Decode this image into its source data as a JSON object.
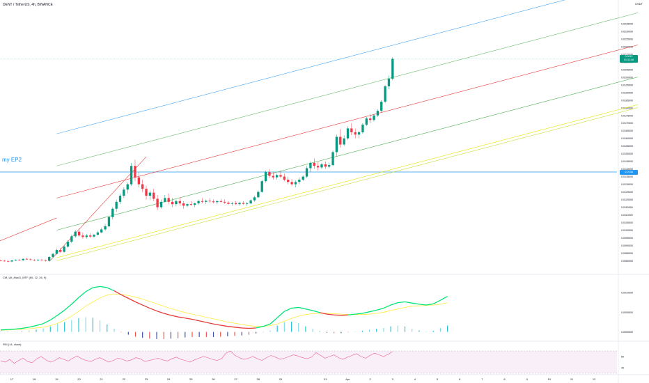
{
  "header": {
    "symbol_line": "DENT / TetherUS, 4h, BINANCE",
    "unit": "USDT"
  },
  "annotation": {
    "label": "my EP2"
  },
  "price_badge": {
    "price": "0.0212",
    "countdown": "01:31:08"
  },
  "level_badge": {
    "price": "0.0138"
  },
  "indicators": {
    "macd_label": "CM_Ult_MacD_MTF (60, 12, 26, 9)",
    "rsi_label": "RSI (14, close)"
  },
  "colors": {
    "up": "#089981",
    "down": "#f23645",
    "axis_text": "#131722",
    "grid": "#f0f3fa",
    "annotation": "#2196f3"
  },
  "chart_data": [
    {
      "type": "candlestick",
      "title": "DENT / TetherUS, 4h, BINANCE",
      "xlabel": "",
      "ylabel": "USDT",
      "ylim": [
        0.0072,
        0.0245
      ],
      "y_ticks": [
        "0.0235000",
        "0.0230000",
        "0.0225000",
        "0.0220000",
        "0.0215000",
        "0.0210000",
        "0.0205000",
        "0.0200000",
        "0.0195000",
        "0.0190000",
        "0.0185000",
        "0.0180000",
        "0.0175000",
        "0.0170000",
        "0.0165000",
        "0.0160000",
        "0.0155000",
        "0.0150000",
        "0.0145000",
        "0.0140000",
        "0.0135000",
        "0.0130000",
        "0.0125000",
        "0.0120000",
        "0.0115000",
        "0.0110000",
        "0.0105000",
        "0.0100000",
        "0.0095000",
        "0.0090000",
        "0.0085000",
        "0.0080000"
      ],
      "x_ticks": [
        {
          "label": "17",
          "index": 0
        },
        {
          "label": "18",
          "index": 6
        },
        {
          "label": "19",
          "index": 12
        },
        {
          "label": "20",
          "index": 18
        },
        {
          "label": "21",
          "index": 24
        },
        {
          "label": "22",
          "index": 30
        },
        {
          "label": "23",
          "index": 36
        },
        {
          "label": "24",
          "index": 42
        },
        {
          "label": "25",
          "index": 48
        },
        {
          "label": "26",
          "index": 54
        },
        {
          "label": "27",
          "index": 60
        },
        {
          "label": "28",
          "index": 66
        },
        {
          "label": "29",
          "index": 72
        },
        {
          "label": "31",
          "index": 84
        },
        {
          "label": "Apr",
          "index": 90
        },
        {
          "label": "2",
          "index": 96
        },
        {
          "label": "3",
          "index": 102
        },
        {
          "label": "4",
          "index": 108
        },
        {
          "label": "5",
          "index": 114
        },
        {
          "label": "6",
          "index": 120
        },
        {
          "label": "7",
          "index": 126
        },
        {
          "label": "8",
          "index": 132
        },
        {
          "label": "9",
          "index": 138
        },
        {
          "label": "10",
          "index": 144
        },
        {
          "label": "11",
          "index": 150
        },
        {
          "label": "12",
          "index": 156
        }
      ],
      "candles": [
        [
          0.00802,
          0.00808,
          0.00796,
          0.008
        ],
        [
          0.008,
          0.00806,
          0.00794,
          0.00798
        ],
        [
          0.00798,
          0.00802,
          0.0079,
          0.00795
        ],
        [
          0.00795,
          0.00805,
          0.0079,
          0.00802
        ],
        [
          0.00802,
          0.0081,
          0.00798,
          0.00806
        ],
        [
          0.00806,
          0.00812,
          0.008,
          0.00803
        ],
        [
          0.00803,
          0.00815,
          0.008,
          0.00812
        ],
        [
          0.00812,
          0.0082,
          0.00806,
          0.00809
        ],
        [
          0.00809,
          0.00816,
          0.00802,
          0.00806
        ],
        [
          0.00806,
          0.00812,
          0.00798,
          0.00803
        ],
        [
          0.00803,
          0.0081,
          0.00797,
          0.00807
        ],
        [
          0.00807,
          0.00812,
          0.008,
          0.00804
        ],
        [
          0.00804,
          0.00808,
          0.00795,
          0.008
        ],
        [
          0.008,
          0.0083,
          0.00798,
          0.00825
        ],
        [
          0.00825,
          0.0085,
          0.00818,
          0.00845
        ],
        [
          0.00845,
          0.0088,
          0.0084,
          0.0087
        ],
        [
          0.0087,
          0.00885,
          0.0085,
          0.00858
        ],
        [
          0.00858,
          0.009,
          0.00852,
          0.00892
        ],
        [
          0.00892,
          0.00935,
          0.00885,
          0.00925
        ],
        [
          0.00925,
          0.0097,
          0.00915,
          0.0096
        ],
        [
          0.0096,
          0.01,
          0.0095,
          0.0099
        ],
        [
          0.0099,
          0.0101,
          0.00955,
          0.00965
        ],
        [
          0.00965,
          0.00985,
          0.00945,
          0.00955
        ],
        [
          0.00955,
          0.00975,
          0.00945,
          0.00965
        ],
        [
          0.00965,
          0.0098,
          0.0095,
          0.00958
        ],
        [
          0.00958,
          0.00975,
          0.0095,
          0.0097
        ],
        [
          0.0097,
          0.00995,
          0.00965,
          0.00985
        ],
        [
          0.00985,
          0.01015,
          0.0098,
          0.01005
        ],
        [
          0.01005,
          0.0104,
          0.00995,
          0.01025
        ],
        [
          0.01025,
          0.01095,
          0.0102,
          0.01085
        ],
        [
          0.01085,
          0.0115,
          0.0107,
          0.0114
        ],
        [
          0.0114,
          0.012,
          0.0112,
          0.01185
        ],
        [
          0.01185,
          0.0124,
          0.0117,
          0.01225
        ],
        [
          0.01225,
          0.0128,
          0.0121,
          0.01265
        ],
        [
          0.01265,
          0.0131,
          0.0124,
          0.013
        ],
        [
          0.013,
          0.0144,
          0.0129,
          0.0142
        ],
        [
          0.0142,
          0.0146,
          0.0132,
          0.01345
        ],
        [
          0.01345,
          0.0138,
          0.0128,
          0.013
        ],
        [
          0.013,
          0.0133,
          0.0125,
          0.0127
        ],
        [
          0.0127,
          0.0129,
          0.012,
          0.01225
        ],
        [
          0.01225,
          0.0126,
          0.012,
          0.01245
        ],
        [
          0.01245,
          0.0127,
          0.0119,
          0.01205
        ],
        [
          0.01205,
          0.0123,
          0.0113,
          0.0115
        ],
        [
          0.0115,
          0.012,
          0.0114,
          0.01185
        ],
        [
          0.01185,
          0.0123,
          0.0118,
          0.0121
        ],
        [
          0.0121,
          0.0124,
          0.0117,
          0.01185
        ],
        [
          0.01185,
          0.0121,
          0.0115,
          0.0117
        ],
        [
          0.0117,
          0.012,
          0.01155,
          0.0119
        ],
        [
          0.0119,
          0.01215,
          0.0116,
          0.01175
        ],
        [
          0.01175,
          0.0119,
          0.0114,
          0.0116
        ],
        [
          0.0116,
          0.0118,
          0.0115,
          0.0117
        ],
        [
          0.0117,
          0.0119,
          0.0116,
          0.01165
        ],
        [
          0.01165,
          0.0118,
          0.0115,
          0.01175
        ],
        [
          0.01175,
          0.012,
          0.01165,
          0.0119
        ],
        [
          0.0119,
          0.0121,
          0.01175,
          0.01185
        ],
        [
          0.01185,
          0.012,
          0.0117,
          0.01192
        ],
        [
          0.01192,
          0.0121,
          0.0118,
          0.01188
        ],
        [
          0.01188,
          0.012,
          0.01175,
          0.01183
        ],
        [
          0.01183,
          0.01195,
          0.0117,
          0.0119
        ],
        [
          0.0119,
          0.01205,
          0.0118,
          0.01185
        ],
        [
          0.01185,
          0.012,
          0.01172,
          0.0118
        ],
        [
          0.0118,
          0.0119,
          0.01165,
          0.01172
        ],
        [
          0.01172,
          0.01185,
          0.0116,
          0.01176
        ],
        [
          0.01176,
          0.0119,
          0.01165,
          0.0117
        ],
        [
          0.0117,
          0.01185,
          0.0116,
          0.01178
        ],
        [
          0.01178,
          0.0119,
          0.01165,
          0.01172
        ],
        [
          0.01172,
          0.01185,
          0.0116,
          0.01175
        ],
        [
          0.01175,
          0.012,
          0.0117,
          0.01195
        ],
        [
          0.01195,
          0.01225,
          0.01185,
          0.01215
        ],
        [
          0.01215,
          0.0126,
          0.0121,
          0.0125
        ],
        [
          0.0125,
          0.0133,
          0.01245,
          0.0132
        ],
        [
          0.0132,
          0.0139,
          0.0131,
          0.0138
        ],
        [
          0.0138,
          0.014,
          0.0134,
          0.01355
        ],
        [
          0.01355,
          0.0138,
          0.0133,
          0.01345
        ],
        [
          0.01345,
          0.0137,
          0.0133,
          0.0136
        ],
        [
          0.0136,
          0.0139,
          0.0134,
          0.0135
        ],
        [
          0.0135,
          0.0137,
          0.0132,
          0.0133
        ],
        [
          0.0133,
          0.0135,
          0.013,
          0.01315
        ],
        [
          0.01315,
          0.01335,
          0.0129,
          0.013
        ],
        [
          0.013,
          0.01325,
          0.0128,
          0.01315
        ],
        [
          0.01315,
          0.01345,
          0.013,
          0.0133
        ],
        [
          0.0133,
          0.0136,
          0.0132,
          0.0135
        ],
        [
          0.0135,
          0.0142,
          0.0134,
          0.01405
        ],
        [
          0.01405,
          0.0145,
          0.0138,
          0.0144
        ],
        [
          0.0144,
          0.0147,
          0.014,
          0.0142
        ],
        [
          0.0142,
          0.01445,
          0.0139,
          0.0141
        ],
        [
          0.0141,
          0.0144,
          0.014,
          0.0143
        ],
        [
          0.0143,
          0.0145,
          0.014,
          0.01415
        ],
        [
          0.01415,
          0.0144,
          0.01405,
          0.01425
        ],
        [
          0.01425,
          0.0152,
          0.0142,
          0.0151
        ],
        [
          0.0151,
          0.01625,
          0.0148,
          0.0161
        ],
        [
          0.0161,
          0.0166,
          0.0154,
          0.0156
        ],
        [
          0.0156,
          0.0162,
          0.0155,
          0.016
        ],
        [
          0.016,
          0.0168,
          0.0159,
          0.01665
        ],
        [
          0.01665,
          0.017,
          0.0162,
          0.0164
        ],
        [
          0.0164,
          0.01665,
          0.016,
          0.01625
        ],
        [
          0.01625,
          0.0165,
          0.016,
          0.0164
        ],
        [
          0.0164,
          0.017,
          0.0163,
          0.0169
        ],
        [
          0.0169,
          0.0174,
          0.0168,
          0.0173
        ],
        [
          0.0173,
          0.0176,
          0.017,
          0.0172
        ],
        [
          0.0172,
          0.0176,
          0.0171,
          0.0175
        ],
        [
          0.0175,
          0.0179,
          0.0174,
          0.0178
        ],
        [
          0.0178,
          0.0185,
          0.0177,
          0.0184
        ],
        [
          0.0184,
          0.0195,
          0.0183,
          0.0194
        ],
        [
          0.0194,
          0.0201,
          0.0192,
          0.0199
        ],
        [
          0.0199,
          0.0213,
          0.0198,
          0.0212
        ]
      ],
      "annotations": [
        {
          "label": "my EP2",
          "price": 0.0138
        }
      ]
    },
    {
      "type": "line",
      "title": "CM_Ult_MacD_MTF (60, 12, 26, 9)",
      "y_ticks": [
        "0.0010000",
        "0.0005000",
        "0.0000000"
      ],
      "ylim": [
        -0.0002,
        0.00135
      ],
      "series": [
        {
          "name": "MACD",
          "values": [
            5e-05,
            6e-05,
            7e-05,
            9e-05,
            0.00012,
            0.00016,
            0.00021,
            0.0003,
            0.00042,
            0.00055,
            0.0007,
            0.00087,
            0.00102,
            0.00112,
            0.00115,
            0.00112,
            0.00104,
            0.00094,
            0.00085,
            0.00076,
            0.00068,
            0.0006,
            0.00053,
            0.00047,
            0.00042,
            0.00038,
            0.00035,
            0.00032,
            0.00028,
            0.00024,
            0.0002,
            0.00017,
            0.00014,
            0.00012,
            0.0001,
            9e-05,
            0.0001,
            0.00014,
            0.0002,
            0.00036,
            0.00052,
            0.0006,
            0.00062,
            0.00058,
            0.00054,
            0.00049,
            0.00045,
            0.00043,
            0.00042,
            0.00043,
            0.00045,
            0.00047,
            0.00051,
            0.00055,
            0.0006,
            0.00068,
            0.00074,
            0.00076,
            0.00073,
            0.0007,
            0.00068,
            0.00071,
            0.0008,
            0.0009
          ]
        },
        {
          "name": "Signal",
          "values": [
            4e-05,
            5e-05,
            6e-05,
            7e-05,
            8e-05,
            0.0001,
            0.00012,
            0.00016,
            0.00022,
            0.0003,
            0.0004,
            0.00052,
            0.00065,
            0.00076,
            0.00086,
            0.00093,
            0.00096,
            0.00095,
            0.00092,
            0.00088,
            0.00083,
            0.00077,
            0.00071,
            0.00065,
            0.00059,
            0.00054,
            0.00049,
            0.00045,
            0.00041,
            0.00037,
            0.00033,
            0.00029,
            0.00025,
            0.00022,
            0.00019,
            0.00016,
            0.00014,
            0.00014,
            0.00016,
            0.0002,
            0.00027,
            0.00034,
            0.0004,
            0.00044,
            0.00046,
            0.00047,
            0.00047,
            0.00046,
            0.00045,
            0.00044,
            0.00044,
            0.00044,
            0.00045,
            0.00047,
            0.0005,
            0.00054,
            0.00058,
            0.00062,
            0.00065,
            0.00066,
            0.00067,
            0.00068,
            0.0007,
            0.00074
          ]
        }
      ]
    },
    {
      "type": "line",
      "title": "RSI (14, close)",
      "y_ticks": [
        "60",
        "40"
      ],
      "ylim": [
        30,
        80
      ],
      "series": [
        {
          "name": "RSI",
          "values": [
            52,
            50,
            55,
            48,
            53,
            57,
            51,
            49,
            56,
            60,
            54,
            50,
            53,
            58,
            55,
            52,
            57,
            61,
            56,
            53,
            51,
            55,
            58,
            54,
            50,
            53,
            57,
            55,
            52,
            54,
            58,
            56,
            51,
            53,
            55,
            57,
            54,
            52,
            56,
            59,
            55,
            53,
            50,
            54,
            57,
            60,
            58,
            55,
            53,
            56,
            66,
            70,
            62,
            58,
            55,
            57,
            60,
            56,
            53,
            58,
            62,
            59,
            55,
            57,
            60,
            63,
            61,
            58,
            56,
            59,
            67,
            62,
            57,
            60,
            63,
            58,
            55,
            59,
            62,
            65,
            60,
            57,
            62,
            66,
            63,
            60,
            64,
            69
          ]
        }
      ]
    }
  ]
}
